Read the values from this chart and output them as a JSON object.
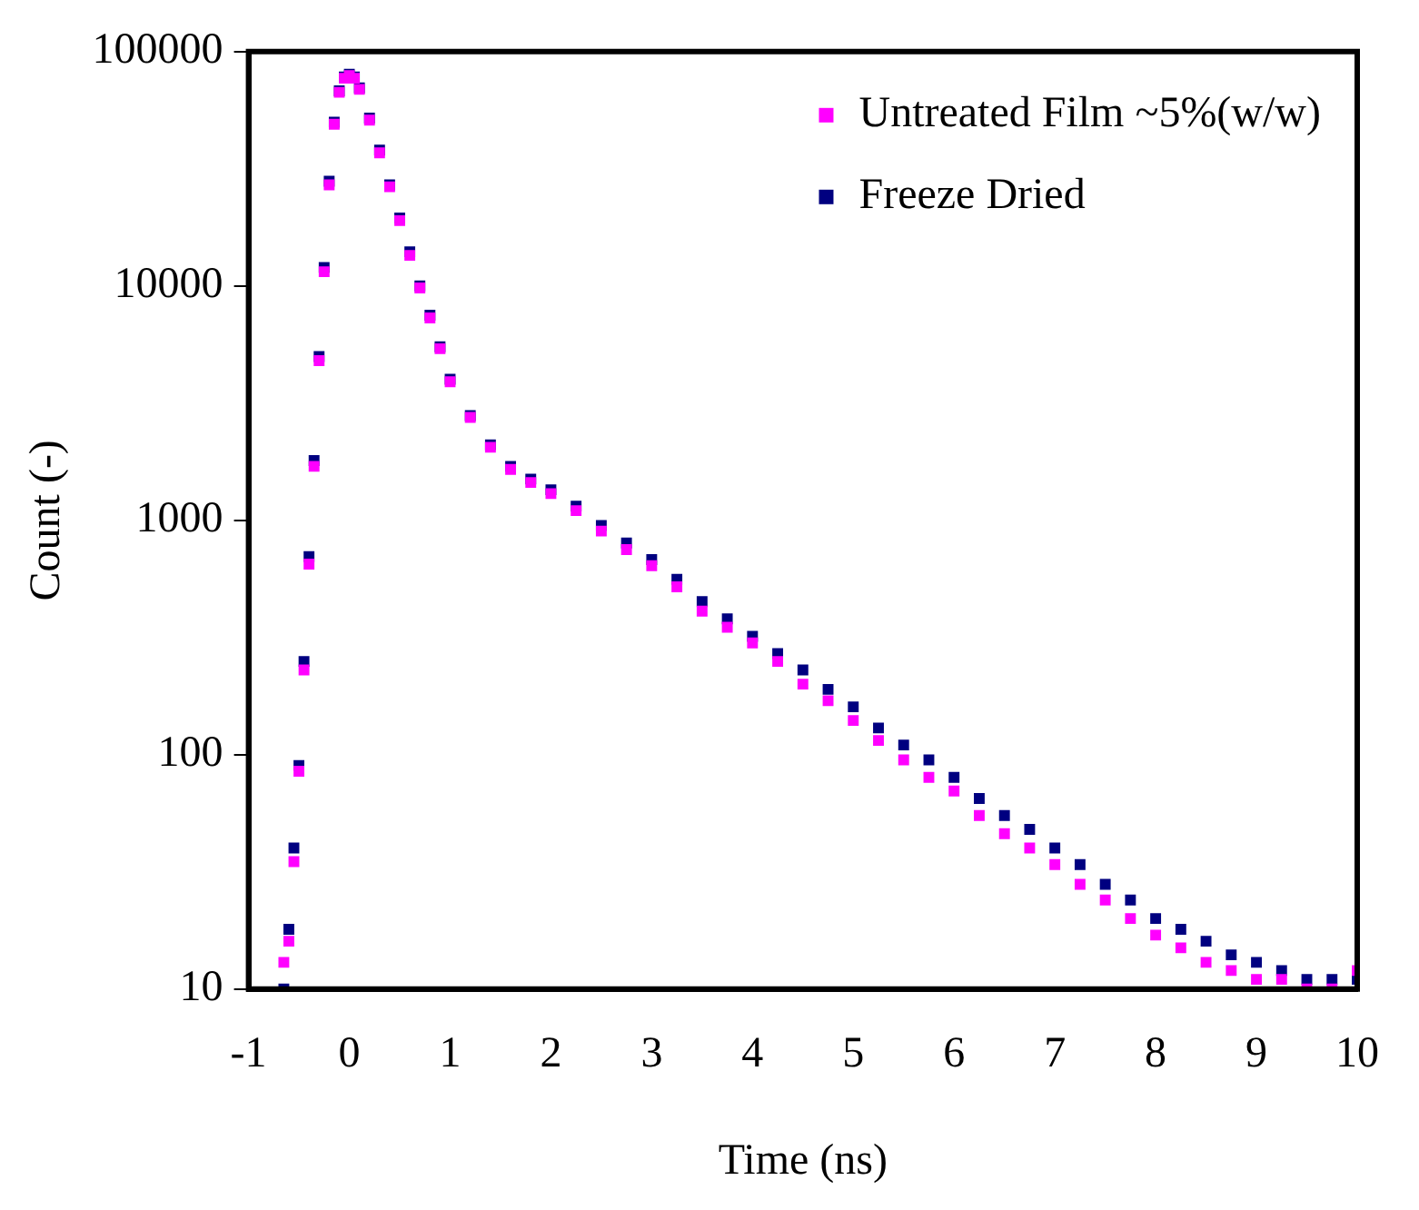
{
  "chart_data": {
    "type": "scatter",
    "xlabel": "Time (ns)",
    "ylabel": "Count (-)",
    "log": "y",
    "marker": "square",
    "legend": "top right",
    "grid": false,
    "xlim": [
      -1,
      10
    ],
    "xticks": [
      -1,
      0,
      1,
      2,
      3,
      4,
      5,
      6,
      7,
      8,
      9,
      10
    ],
    "ylim": [
      10,
      100000
    ],
    "yticks": [
      10,
      100,
      1000,
      10000,
      100000
    ],
    "x": [
      -0.65,
      -0.6,
      -0.55,
      -0.5,
      -0.45,
      -0.4,
      -0.35,
      -0.3,
      -0.25,
      -0.2,
      -0.15,
      -0.1,
      -0.05,
      0,
      0.05,
      0.1,
      0.2,
      0.3,
      0.4,
      0.5,
      0.6,
      0.7,
      0.8,
      0.9,
      1.0,
      1.2,
      1.4,
      1.6,
      1.8,
      2.0,
      2.25,
      2.5,
      2.75,
      3.0,
      3.25,
      3.5,
      3.75,
      4,
      4.25,
      4.5,
      4.75,
      5,
      5.25,
      5.5,
      5.75,
      6,
      6.25,
      6.5,
      6.75,
      7,
      7.25,
      7.5,
      7.75,
      8,
      8.25,
      8.5,
      8.75,
      9,
      9.25,
      9.5,
      9.75,
      10
    ],
    "series": [
      {
        "name": "Untreated Film ~5%(w/w)",
        "color": "#ff00ff",
        "values": [
          13,
          16,
          35,
          85,
          230,
          650,
          1700,
          4800,
          11500,
          27000,
          49000,
          67000,
          77000,
          79000,
          77000,
          69000,
          51000,
          37000,
          26500,
          19000,
          13500,
          9800,
          7300,
          5400,
          3900,
          2750,
          2050,
          1650,
          1450,
          1300,
          1100,
          900,
          750,
          640,
          520,
          410,
          350,
          300,
          250,
          200,
          170,
          140,
          115,
          95,
          80,
          70,
          55,
          46,
          40,
          34,
          28,
          24,
          20,
          17,
          15,
          13,
          12,
          11,
          11,
          10,
          10,
          12
        ]
      },
      {
        "name": "Freeze Dried",
        "color": "#000080",
        "values": [
          10,
          18,
          40,
          90,
          250,
          700,
          1800,
          5000,
          12000,
          28000,
          50000,
          68000,
          78000,
          80000,
          78000,
          70000,
          52000,
          38000,
          27000,
          19500,
          14000,
          10000,
          7500,
          5500,
          4000,
          2800,
          2100,
          1700,
          1500,
          1350,
          1150,
          950,
          800,
          680,
          560,
          450,
          380,
          320,
          270,
          230,
          190,
          160,
          130,
          110,
          95,
          80,
          65,
          55,
          48,
          40,
          34,
          28,
          24,
          20,
          18,
          16,
          14,
          13,
          12,
          11,
          11,
          11
        ]
      }
    ]
  }
}
